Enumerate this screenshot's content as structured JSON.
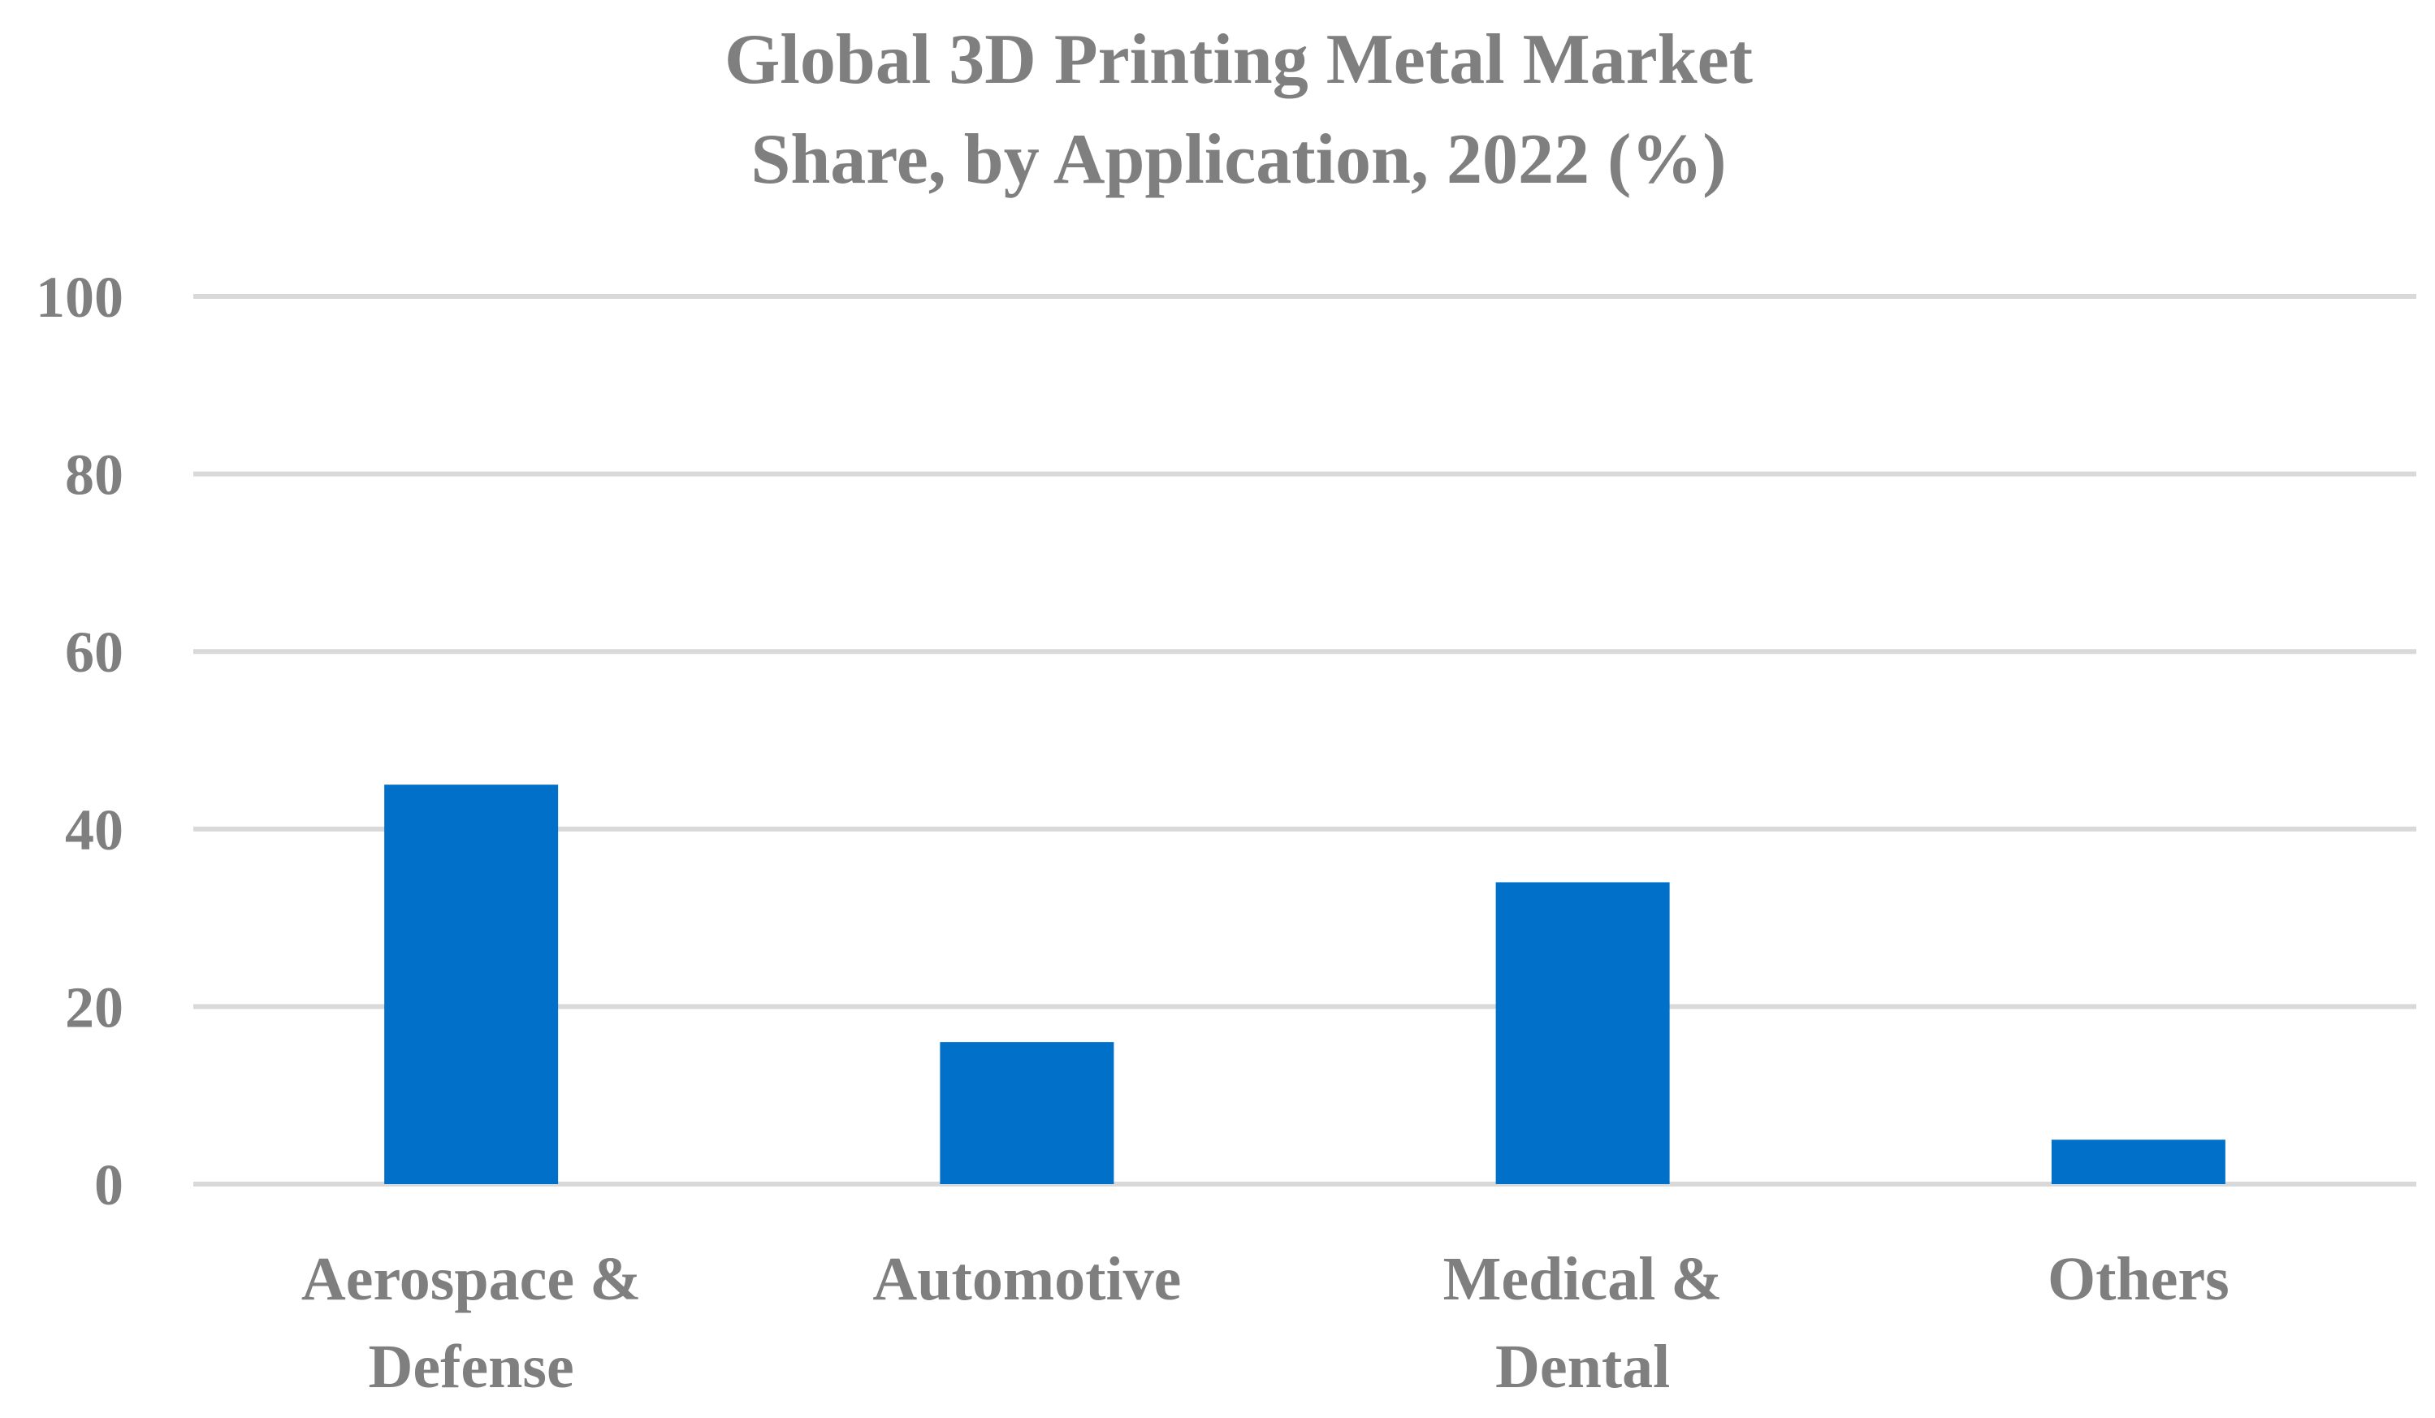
{
  "chart_data": {
    "type": "bar",
    "title_lines": [
      "Global 3D Printing Metal Market",
      "Share, by Application, 2022 (%)"
    ],
    "categories": [
      [
        "Aerospace &",
        "Defense"
      ],
      [
        "Automotive"
      ],
      [
        "Medical &",
        "Dental"
      ],
      [
        "Others"
      ]
    ],
    "values": [
      45,
      16,
      34,
      5
    ],
    "ylim": [
      0,
      100
    ],
    "yticks": [
      0,
      20,
      40,
      60,
      80,
      100
    ],
    "ytick_labels": [
      "0",
      "20",
      "40",
      "60",
      "80",
      "100"
    ],
    "grid": true,
    "legend": "none",
    "colors": {
      "bar": "#0070c9",
      "grid": "#d9d9d9",
      "text": "#7f7f7f"
    }
  }
}
